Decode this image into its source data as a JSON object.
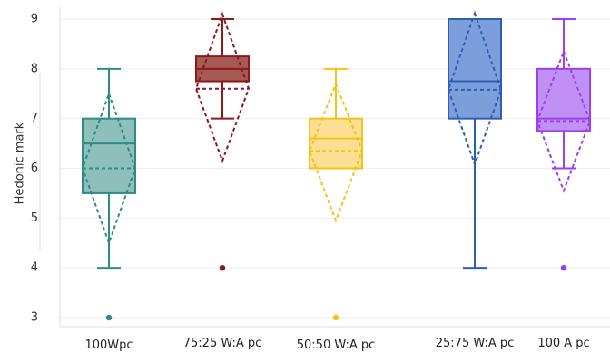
{
  "chart_data": {
    "type": "boxplot",
    "title": "",
    "xlabel": "",
    "ylabel": "Hedonic mark",
    "ylim": [
      2.75,
      9.25
    ],
    "yticks": [
      3,
      4,
      5,
      6,
      7,
      8,
      9
    ],
    "grid": true,
    "categories": [
      "100Wpc",
      "75:25 W:A pc",
      "50:50 W:A pc",
      "25:75 W:A pc",
      "100 A pc"
    ],
    "series": [
      {
        "category": "100Wpc",
        "color": "#2e8b86",
        "fill": "#8fbfba",
        "min": 4,
        "q1": 5.5,
        "median": 6.5,
        "q3": 7,
        "max": 8,
        "mean": 6,
        "sd_low": 4.5,
        "sd_high": 7.5,
        "outliers": [
          3
        ]
      },
      {
        "category": "75:25 W:A pc",
        "color": "#8b1a1a",
        "fill": "#a55a55",
        "min": 7,
        "q1": 7.75,
        "median": 8,
        "q3": 8.25,
        "max": 9,
        "mean": 7.6,
        "sd_low": 6.15,
        "sd_high": 9.1,
        "outliers": [
          4
        ]
      },
      {
        "category": "50:50 W:A pc",
        "color": "#f5c21b",
        "fill": "#fbdf94",
        "min": 6,
        "q1": 6,
        "median": 6.6,
        "q3": 7,
        "max": 8,
        "mean": 6.35,
        "sd_low": 4.95,
        "sd_high": 7.7,
        "outliers": [
          3
        ]
      },
      {
        "category": "25:75 W:A pc",
        "color": "#2f5fb5",
        "fill": "#7c9fdb",
        "min": 4,
        "q1": 7,
        "median": 7.75,
        "q3": 9,
        "max": 9,
        "mean": 7.58,
        "sd_low": 6.08,
        "sd_high": 9.12,
        "outliers": []
      },
      {
        "category": "100 A pc",
        "color": "#9b3ff0",
        "fill": "#c190f5",
        "min": 6,
        "q1": 6.75,
        "median": 7,
        "q3": 8,
        "max": 9,
        "mean": 6.95,
        "sd_low": 5.55,
        "sd_high": 8.35,
        "outliers": [
          4
        ]
      }
    ]
  }
}
